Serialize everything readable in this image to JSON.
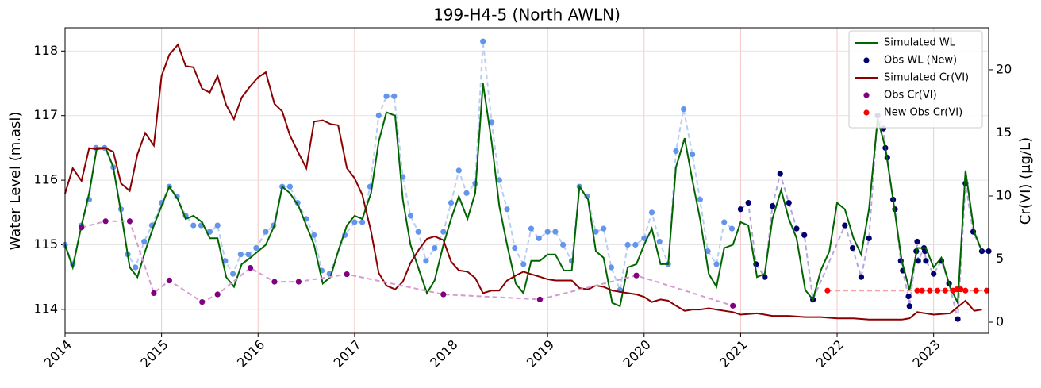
{
  "chart_data": {
    "type": "line",
    "title": "199-H4-5 (North AWLN)",
    "ylabel": "Water Level (m.asl)",
    "y2label": "Cr(VI) (μg/L)",
    "xlim": [
      2014,
      2023.57
    ],
    "xticks": [
      2014,
      2015,
      2016,
      2017,
      2018,
      2019,
      2020,
      2021,
      2022,
      2023
    ],
    "ylim": [
      113.63,
      118.36
    ],
    "yticks": [
      114,
      115,
      116,
      117,
      118
    ],
    "y2lim": [
      -0.88,
      23.33
    ],
    "y2ticks": [
      0,
      5,
      10,
      15,
      20
    ],
    "grid": true,
    "legend": "upper right",
    "series": [
      {
        "kind": "scatter",
        "color": "#6495ed",
        "dash_color": "#b8cdf2",
        "x": [
          2014.0,
          2014.08,
          2014.17,
          2014.25,
          2014.32,
          2014.41,
          2014.5,
          2014.58,
          2014.65,
          2014.73,
          2014.82,
          2014.9,
          2015.0,
          2015.08,
          2015.16,
          2015.25,
          2015.33,
          2015.41,
          2015.5,
          2015.58,
          2015.66,
          2015.74,
          2015.82,
          2015.9,
          2015.98,
          2016.08,
          2016.16,
          2016.25,
          2016.33,
          2016.41,
          2016.5,
          2016.58,
          2016.66,
          2016.74,
          2016.9,
          2017.0,
          2017.08,
          2017.16,
          2017.25,
          2017.33,
          2017.41,
          2017.5,
          2017.58,
          2017.66,
          2017.74,
          2017.83,
          2017.92,
          2018.0,
          2018.08,
          2018.16,
          2018.25,
          2018.33,
          2018.42,
          2018.5,
          2018.58,
          2018.66,
          2018.75,
          2018.83,
          2018.91,
          2019.0,
          2019.08,
          2019.16,
          2019.25,
          2019.33,
          2019.41,
          2019.5,
          2019.58,
          2019.66,
          2019.75,
          2019.83,
          2019.91,
          2020.0,
          2020.08,
          2020.16,
          2020.25,
          2020.33,
          2020.41,
          2020.5,
          2020.58,
          2020.66,
          2020.75,
          2020.83,
          2020.91
        ],
        "values": [
          115.0,
          114.7,
          115.3,
          115.7,
          116.5,
          116.5,
          116.2,
          115.55,
          114.85,
          114.65,
          115.05,
          115.3,
          115.65,
          115.9,
          115.75,
          115.45,
          115.3,
          115.3,
          115.2,
          115.3,
          114.75,
          114.55,
          114.85,
          114.85,
          114.95,
          115.2,
          115.3,
          115.9,
          115.9,
          115.65,
          115.4,
          115.15,
          114.6,
          114.55,
          115.15,
          115.35,
          115.35,
          115.9,
          117.0,
          117.3,
          117.3,
          116.05,
          115.45,
          115.2,
          114.75,
          114.95,
          115.2,
          115.65,
          116.15,
          115.8,
          115.95,
          118.15,
          116.9,
          116.0,
          115.55,
          114.95,
          114.7,
          115.25,
          115.1,
          115.2,
          115.2,
          115.0,
          114.75,
          115.9,
          115.75,
          115.2,
          115.25,
          114.65,
          114.3,
          115.0,
          115.0,
          115.1,
          115.5,
          115.05,
          114.7,
          116.45,
          117.1,
          116.4,
          115.7,
          114.9,
          114.7,
          115.35,
          115.25
        ]
      },
      {
        "name": "Obs WL (New)",
        "kind": "scatter",
        "color": "#000070",
        "dash_color": "#b4a6dc",
        "x": [
          2021.0,
          2021.08,
          2021.16,
          2021.25,
          2021.33,
          2021.41,
          2021.5,
          2021.58,
          2021.66,
          2021.75,
          2022.08,
          2022.16,
          2022.25,
          2022.33,
          2022.42,
          2022.48,
          2022.5,
          2022.52,
          2022.58,
          2022.6,
          2022.66,
          2022.68,
          2022.74,
          2022.75,
          2022.82,
          2022.83,
          2022.84,
          2022.9,
          2022.91,
          2022.92,
          2023.0,
          2023.08,
          2023.16,
          2023.25,
          2023.33,
          2023.41,
          2023.5,
          2023.57
        ],
        "values": [
          115.55,
          115.65,
          114.7,
          114.5,
          115.6,
          116.1,
          115.65,
          115.25,
          115.15,
          114.15,
          115.3,
          114.95,
          114.5,
          115.1,
          117.0,
          116.8,
          116.5,
          116.35,
          115.7,
          115.55,
          114.75,
          114.6,
          114.2,
          114.05,
          114.9,
          115.05,
          114.75,
          114.95,
          114.9,
          114.75,
          114.55,
          114.75,
          114.4,
          113.85,
          115.95,
          115.2,
          114.9,
          114.9
        ]
      },
      {
        "name": "Simulated WL",
        "kind": "line",
        "color": "#006400",
        "x": [
          2014.0,
          2014.08,
          2014.17,
          2014.25,
          2014.33,
          2014.42,
          2014.5,
          2014.58,
          2014.67,
          2014.75,
          2014.83,
          2014.92,
          2015.0,
          2015.08,
          2015.17,
          2015.25,
          2015.33,
          2015.42,
          2015.5,
          2015.58,
          2015.67,
          2015.75,
          2015.83,
          2015.92,
          2016.0,
          2016.08,
          2016.17,
          2016.25,
          2016.33,
          2016.42,
          2016.5,
          2016.58,
          2016.67,
          2016.75,
          2016.83,
          2016.92,
          2017.0,
          2017.08,
          2017.17,
          2017.25,
          2017.33,
          2017.42,
          2017.5,
          2017.58,
          2017.67,
          2017.75,
          2017.83,
          2017.92,
          2018.0,
          2018.08,
          2018.17,
          2018.25,
          2018.33,
          2018.42,
          2018.5,
          2018.58,
          2018.67,
          2018.75,
          2018.83,
          2018.92,
          2019.0,
          2019.08,
          2019.17,
          2019.25,
          2019.33,
          2019.42,
          2019.5,
          2019.58,
          2019.67,
          2019.75,
          2019.83,
          2019.92,
          2020.0,
          2020.08,
          2020.17,
          2020.25,
          2020.33,
          2020.42,
          2020.5,
          2020.58,
          2020.67,
          2020.75,
          2020.83,
          2020.92,
          2021.0,
          2021.08,
          2021.17,
          2021.25,
          2021.33,
          2021.42,
          2021.5,
          2021.58,
          2021.67,
          2021.75,
          2021.83,
          2021.92,
          2022.0,
          2022.08,
          2022.17,
          2022.25,
          2022.33,
          2022.42,
          2022.5,
          2022.58,
          2022.67,
          2022.75,
          2022.83,
          2022.92,
          2023.0,
          2023.08,
          2023.17,
          2023.25,
          2023.33,
          2023.42,
          2023.5
        ],
        "values": [
          115.0,
          114.65,
          115.3,
          115.8,
          116.5,
          116.5,
          116.2,
          115.5,
          114.65,
          114.5,
          114.9,
          115.3,
          115.6,
          115.9,
          115.7,
          115.4,
          115.45,
          115.35,
          115.1,
          115.1,
          114.5,
          114.35,
          114.7,
          114.8,
          114.9,
          115.0,
          115.3,
          115.9,
          115.8,
          115.6,
          115.3,
          115.0,
          114.4,
          114.5,
          114.9,
          115.3,
          115.45,
          115.4,
          115.8,
          116.6,
          117.05,
          117.0,
          115.7,
          115.0,
          114.6,
          114.25,
          114.45,
          115.0,
          115.4,
          115.75,
          115.4,
          115.8,
          117.5,
          116.6,
          115.6,
          115.0,
          114.4,
          114.25,
          114.75,
          114.75,
          114.85,
          114.85,
          114.6,
          114.6,
          115.9,
          115.7,
          114.9,
          114.8,
          114.1,
          114.05,
          114.65,
          114.7,
          115.0,
          115.25,
          114.7,
          114.7,
          116.2,
          116.65,
          116.0,
          115.4,
          114.55,
          114.35,
          114.95,
          115.0,
          115.35,
          115.3,
          114.5,
          114.55,
          115.4,
          115.85,
          115.4,
          115.1,
          114.3,
          114.15,
          114.6,
          114.9,
          115.65,
          115.55,
          115.1,
          114.85,
          115.55,
          116.95,
          116.5,
          115.7,
          114.75,
          114.3,
          114.95,
          114.95,
          114.65,
          114.8,
          114.35,
          114.1,
          116.15,
          115.2,
          114.9
        ]
      },
      {
        "name": "Simulated Cr(VI)",
        "kind": "line",
        "color": "#8b0000",
        "axis": "y2",
        "x": [
          2014.0,
          2014.08,
          2014.17,
          2014.25,
          2014.33,
          2014.42,
          2014.5,
          2014.58,
          2014.67,
          2014.75,
          2014.83,
          2014.92,
          2015.0,
          2015.08,
          2015.17,
          2015.25,
          2015.33,
          2015.42,
          2015.5,
          2015.58,
          2015.67,
          2015.75,
          2015.83,
          2015.92,
          2016.0,
          2016.08,
          2016.17,
          2016.25,
          2016.33,
          2016.42,
          2016.5,
          2016.58,
          2016.67,
          2016.75,
          2016.83,
          2016.92,
          2017.0,
          2017.08,
          2017.17,
          2017.25,
          2017.33,
          2017.42,
          2017.5,
          2017.58,
          2017.67,
          2017.75,
          2017.83,
          2017.92,
          2018.0,
          2018.08,
          2018.17,
          2018.25,
          2018.33,
          2018.42,
          2018.5,
          2018.58,
          2018.67,
          2018.75,
          2018.83,
          2018.92,
          2019.0,
          2019.08,
          2019.17,
          2019.25,
          2019.33,
          2019.42,
          2019.5,
          2019.58,
          2019.67,
          2019.75,
          2019.83,
          2019.92,
          2020.0,
          2020.08,
          2020.17,
          2020.25,
          2020.33,
          2020.42,
          2020.5,
          2020.58,
          2020.67,
          2020.75,
          2020.83,
          2020.92,
          2021.0,
          2021.17,
          2021.33,
          2021.5,
          2021.67,
          2021.83,
          2022.0,
          2022.17,
          2022.33,
          2022.5,
          2022.67,
          2022.75,
          2022.83,
          2023.0,
          2023.17,
          2023.33,
          2023.42,
          2023.5
        ],
        "values": [
          10.2,
          12.2,
          11.2,
          13.8,
          13.7,
          13.8,
          13.5,
          11.0,
          10.4,
          13.3,
          15.0,
          14.0,
          19.5,
          21.2,
          22.0,
          20.3,
          20.2,
          18.5,
          18.2,
          19.5,
          17.2,
          16.1,
          17.8,
          18.7,
          19.4,
          19.8,
          17.3,
          16.7,
          14.8,
          13.4,
          12.2,
          15.9,
          16.0,
          15.7,
          15.6,
          12.2,
          11.4,
          10.1,
          7.2,
          3.9,
          2.9,
          2.6,
          3.2,
          4.7,
          5.8,
          6.6,
          6.8,
          6.5,
          4.8,
          4.1,
          4.0,
          3.5,
          2.3,
          2.5,
          2.5,
          3.3,
          3.7,
          4.0,
          3.8,
          3.6,
          3.4,
          3.3,
          3.3,
          3.3,
          2.7,
          2.6,
          2.9,
          2.8,
          2.5,
          2.4,
          2.3,
          2.2,
          2.0,
          1.6,
          1.8,
          1.7,
          1.3,
          0.9,
          1.0,
          1.0,
          1.1,
          1.0,
          0.9,
          0.8,
          0.6,
          0.7,
          0.5,
          0.5,
          0.4,
          0.4,
          0.3,
          0.3,
          0.2,
          0.2,
          0.2,
          0.3,
          0.8,
          0.6,
          0.7,
          1.7,
          0.9,
          1.0
        ]
      },
      {
        "name": "Obs Cr(VI)",
        "kind": "scatter",
        "color": "#800080",
        "dash_color": "#d49ad4",
        "axis": "y2",
        "x": [
          2014.17,
          2014.42,
          2014.67,
          2014.92,
          2015.08,
          2015.42,
          2015.58,
          2015.92,
          2016.17,
          2016.42,
          2016.92,
          2017.92,
          2018.92,
          2019.92,
          2020.92
        ],
        "values": [
          7.5,
          8.0,
          8.0,
          2.3,
          3.3,
          1.6,
          2.2,
          4.3,
          3.2,
          3.2,
          3.8,
          2.2,
          1.8,
          3.7,
          1.3
        ]
      },
      {
        "name": "New Obs Cr(VI)",
        "kind": "scatter",
        "color": "#ff0000",
        "dash_color": "#f4a0a0",
        "axis": "y2",
        "x": [
          2021.9,
          2022.83,
          2022.88,
          2022.96,
          2023.04,
          2023.12,
          2023.2,
          2023.24,
          2023.28,
          2023.33,
          2023.44,
          2023.55
        ],
        "values": [
          2.5,
          2.5,
          2.5,
          2.5,
          2.5,
          2.5,
          2.5,
          2.6,
          2.6,
          2.5,
          2.5,
          2.5
        ]
      }
    ]
  }
}
